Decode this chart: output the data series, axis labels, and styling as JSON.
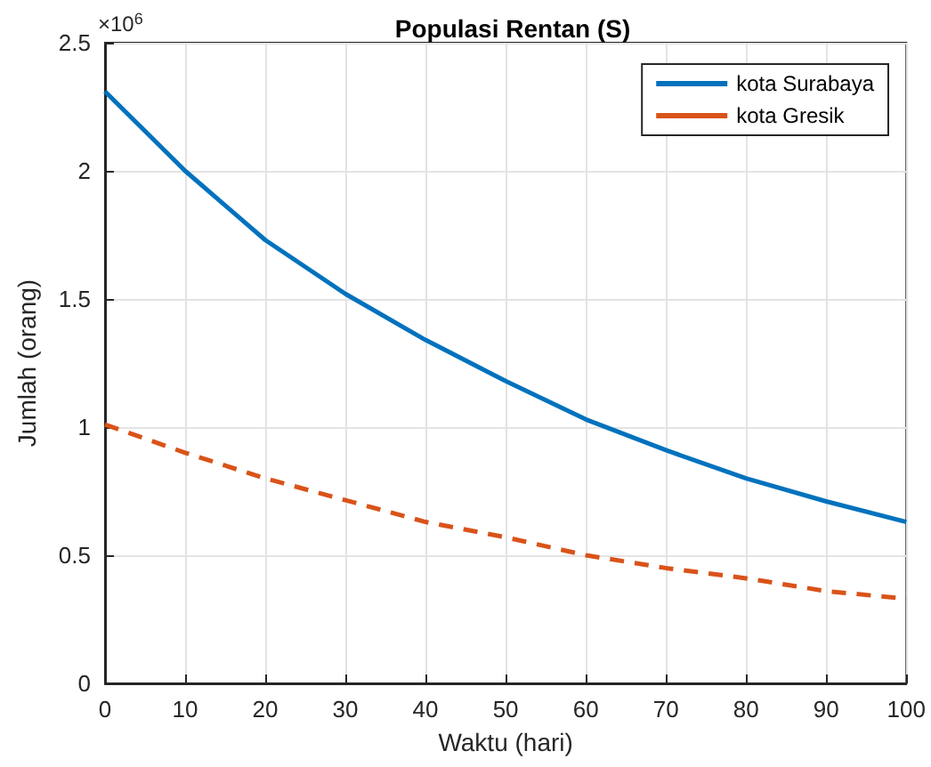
{
  "chart_data": {
    "type": "line",
    "title": "Populasi Rentan (S)",
    "xlabel": "Waktu (hari)",
    "ylabel": "Jumlah (orang)",
    "annotations": [
      "×10$^{6}$"
    ],
    "x": [
      0,
      10,
      20,
      30,
      40,
      50,
      60,
      70,
      80,
      90,
      100
    ],
    "series": [
      {
        "name": "kota Surabaya",
        "color": "#0072bd",
        "line_style": "solid",
        "values": [
          2.31,
          2.0,
          1.73,
          1.52,
          1.34,
          1.18,
          1.03,
          0.91,
          0.8,
          0.71,
          0.63
        ]
      },
      {
        "name": "kota Gresik",
        "color": "#d95319",
        "line_style": "dashed",
        "values": [
          1.01,
          0.9,
          0.8,
          0.715,
          0.63,
          0.57,
          0.5,
          0.45,
          0.41,
          0.36,
          0.33
        ]
      }
    ],
    "xlim": [
      0,
      100
    ],
    "xticks": [
      0,
      10,
      20,
      30,
      40,
      50,
      60,
      70,
      80,
      90,
      100
    ],
    "ylim": [
      0,
      2.5
    ],
    "yticks": [
      0,
      0.5,
      1,
      1.5,
      2,
      2.5
    ],
    "grid": true,
    "legend": "top right",
    "marker": "none"
  }
}
